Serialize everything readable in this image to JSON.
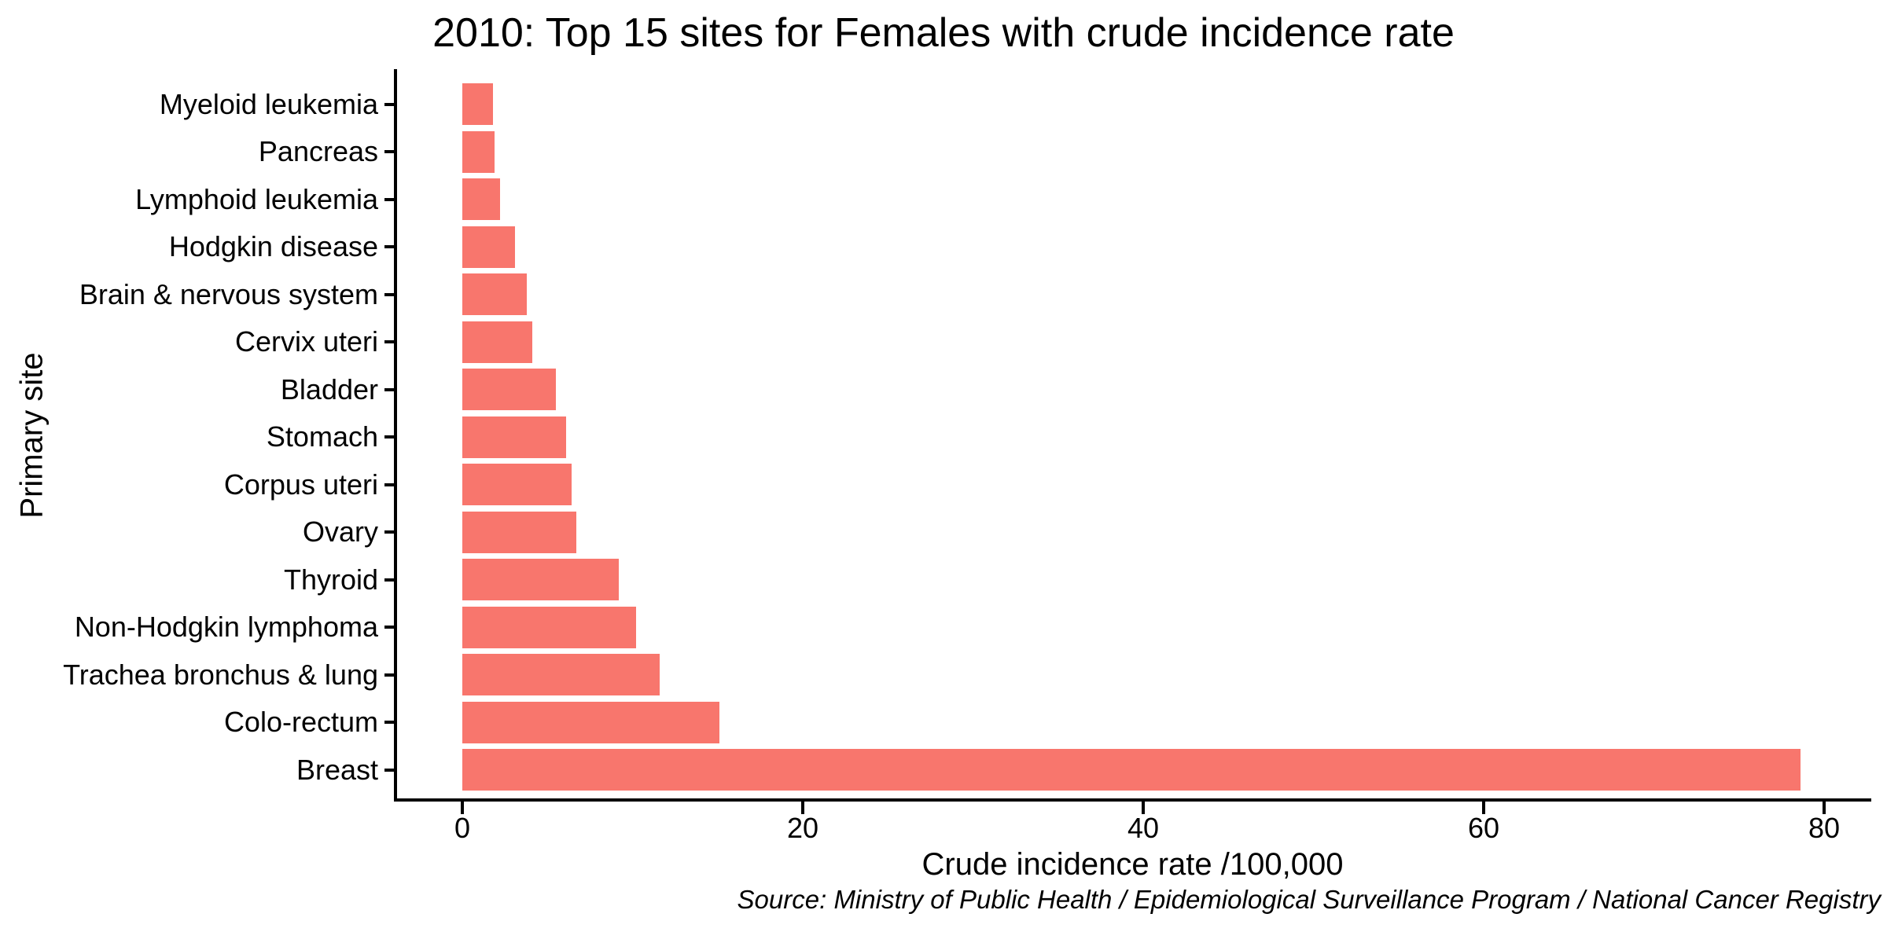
{
  "chart_data": {
    "type": "bar",
    "orientation": "horizontal",
    "title": "2010: Top 15 sites for Females with crude incidence rate",
    "xlabel": "Crude incidence rate /100,000",
    "ylabel": "Primary site",
    "source": "Source: Ministry of Public Health / Epidemiological Surveillance Program / National Cancer Registry",
    "categories": [
      "Myeloid leukemia",
      "Pancreas",
      "Lymphoid leukemia",
      "Hodgkin disease",
      "Brain & nervous system",
      "Cervix uteri",
      "Bladder",
      "Stomach",
      "Corpus uteri",
      "Ovary",
      "Thyroid",
      "Non-Hodgkin lymphoma",
      "Trachea bronchus & lung",
      "Colo-rectum",
      "Breast"
    ],
    "values": [
      1.8,
      1.9,
      2.2,
      3.1,
      3.8,
      4.1,
      5.5,
      6.1,
      6.4,
      6.7,
      9.2,
      10.2,
      11.6,
      15.1,
      78.6
    ],
    "x_ticks": [
      0,
      20,
      40,
      60,
      80
    ],
    "xlim": [
      0,
      82.5
    ],
    "grid": false,
    "legend": false,
    "bar_color": "#F8766D",
    "axis_color": "#000000",
    "text_color": "#000000",
    "background_color": "#FFFFFF"
  }
}
